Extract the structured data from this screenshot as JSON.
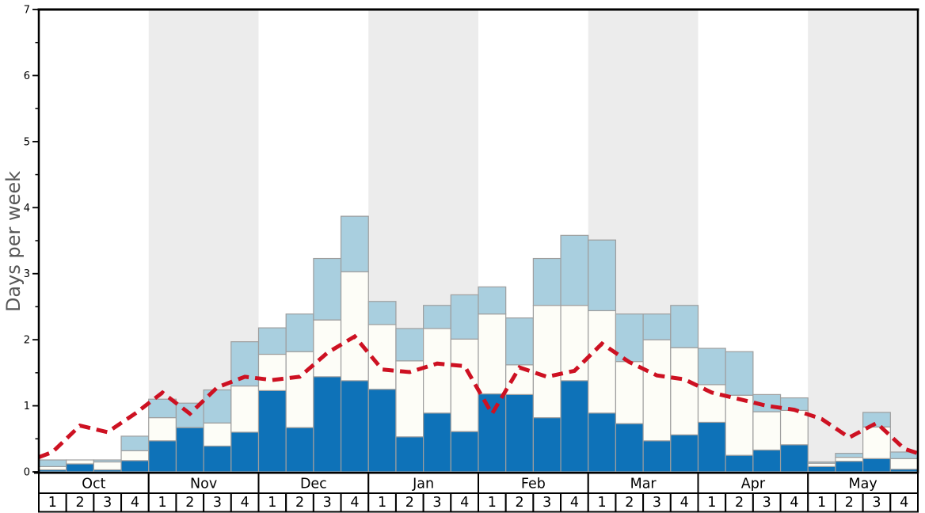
{
  "chart_data": {
    "type": "bar",
    "stacked": true,
    "title": "",
    "ylabel": "Days per week",
    "ylim": [
      0,
      7
    ],
    "y_major_ticks": [
      0,
      1,
      2,
      3,
      4,
      5,
      6,
      7
    ],
    "y_minor_tick_step": 0.5,
    "grid": "off",
    "legend": "none",
    "months": [
      "Oct",
      "Nov",
      "Dec",
      "Jan",
      "Feb",
      "Mar",
      "Apr",
      "May"
    ],
    "week_labels": [
      "1",
      "2",
      "3",
      "4"
    ],
    "month_band_colors": [
      "#ffffff",
      "#ececec"
    ],
    "bar_border_color": "#9e9e9e",
    "axis_color": "#000000",
    "ylabel_color": "#575757",
    "series": [
      {
        "name": "dark-blue",
        "color": "#0e72b8",
        "values": [
          0.03,
          0.12,
          0.03,
          0.17,
          0.47,
          0.67,
          0.39,
          0.6,
          1.23,
          0.67,
          1.44,
          1.38,
          1.25,
          0.53,
          0.89,
          0.61,
          1.18,
          1.17,
          0.82,
          1.38,
          0.89,
          0.73,
          0.47,
          0.56,
          0.75,
          0.25,
          0.33,
          0.41,
          0.08,
          0.16,
          0.2,
          0.04
        ]
      },
      {
        "name": "white",
        "color": "#fdfdf7",
        "values": [
          0.05,
          0.06,
          0.12,
          0.15,
          0.35,
          0.0,
          0.35,
          0.7,
          0.55,
          1.15,
          0.86,
          1.65,
          0.98,
          1.15,
          1.28,
          1.4,
          1.21,
          0.45,
          1.7,
          1.14,
          1.55,
          0.94,
          1.53,
          1.32,
          0.57,
          0.91,
          0.58,
          0.52,
          0.05,
          0.06,
          0.48,
          0.16
        ]
      },
      {
        "name": "light-blue",
        "color": "#a9cfdf",
        "values": [
          0.1,
          0.0,
          0.03,
          0.22,
          0.28,
          0.37,
          0.5,
          0.67,
          0.4,
          0.57,
          0.93,
          0.84,
          0.35,
          0.49,
          0.35,
          0.67,
          0.41,
          0.71,
          0.71,
          1.06,
          1.07,
          0.72,
          0.39,
          0.64,
          0.55,
          0.66,
          0.26,
          0.19,
          0.02,
          0.06,
          0.22,
          0.1
        ]
      }
    ],
    "line": {
      "name": "red-dashed",
      "color": "#cd1122",
      "dashed": true,
      "edge_start": 0.22,
      "edge_end": 0.28,
      "values": [
        0.3,
        0.7,
        0.6,
        0.88,
        1.2,
        0.88,
        1.28,
        1.44,
        1.39,
        1.44,
        1.8,
        2.05,
        1.55,
        1.51,
        1.64,
        1.6,
        0.88,
        1.58,
        1.44,
        1.53,
        1.94,
        1.66,
        1.46,
        1.4,
        1.2,
        1.1,
        1.0,
        0.94,
        0.8,
        0.52,
        0.74,
        0.35
      ]
    }
  }
}
